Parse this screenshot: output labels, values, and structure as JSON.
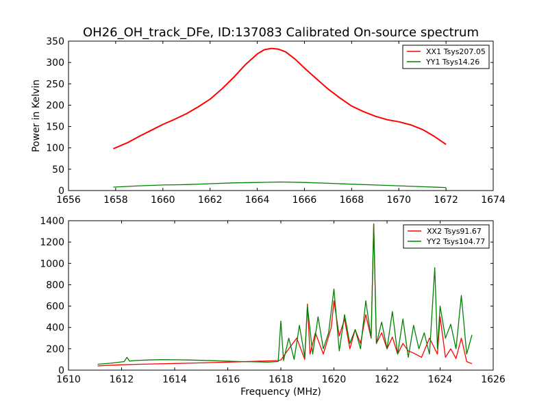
{
  "figure_title": "OH26_OH_track_DFe, ID:137083 Calibrated On-source spectrum",
  "chart_data": [
    {
      "type": "line",
      "title": "",
      "xlabel": "",
      "ylabel": "Power in Kelvin",
      "xlim": [
        1656,
        1674
      ],
      "ylim": [
        0,
        350
      ],
      "xticks": [
        "1656",
        "1658",
        "1660",
        "1662",
        "1664",
        "1666",
        "1668",
        "1670",
        "1672",
        "1674"
      ],
      "yticks": [
        "0",
        "50",
        "100",
        "150",
        "200",
        "250",
        "300",
        "350"
      ],
      "legend_placement": "top-right",
      "series": [
        {
          "name": "XX1 Tsys207.05",
          "color": "#ff0000",
          "x": [
            1657.9,
            1658.5,
            1659.0,
            1659.5,
            1660.0,
            1660.5,
            1661.0,
            1661.5,
            1662.0,
            1662.5,
            1663.0,
            1663.5,
            1664.0,
            1664.3,
            1664.6,
            1664.9,
            1665.2,
            1665.6,
            1666.0,
            1666.5,
            1667.0,
            1667.5,
            1668.0,
            1668.5,
            1669.0,
            1669.5,
            1670.0,
            1670.5,
            1671.0,
            1671.5,
            1672.0
          ],
          "y": [
            98,
            112,
            127,
            141,
            155,
            167,
            180,
            196,
            214,
            238,
            265,
            295,
            320,
            330,
            333,
            331,
            325,
            308,
            287,
            262,
            238,
            217,
            198,
            185,
            174,
            166,
            161,
            154,
            143,
            127,
            108
          ]
        },
        {
          "name": "YY1 Tsys14.26",
          "color": "#008000",
          "x": [
            1657.9,
            1659.0,
            1660.0,
            1661.0,
            1662.0,
            1663.0,
            1664.0,
            1665.0,
            1666.0,
            1667.0,
            1668.0,
            1669.0,
            1670.0,
            1671.0,
            1672.0
          ],
          "y": [
            8,
            11,
            13,
            14,
            16,
            18,
            19,
            20,
            19,
            17,
            15,
            13,
            11,
            9,
            7
          ]
        }
      ]
    },
    {
      "type": "line",
      "title": "",
      "xlabel": "Frequency (MHz)",
      "ylabel": "",
      "xlim": [
        1610,
        1626
      ],
      "ylim": [
        0,
        1400
      ],
      "xticks": [
        "1610",
        "1612",
        "1614",
        "1616",
        "1618",
        "1620",
        "1622",
        "1624",
        "1626"
      ],
      "yticks": [
        "0",
        "200",
        "400",
        "600",
        "800",
        "1000",
        "1200",
        "1400"
      ],
      "legend_placement": "top-right",
      "series": [
        {
          "name": "XX2 Tsys91.67",
          "color": "#ff0000",
          "x": [
            1611.1,
            1612.0,
            1613.0,
            1614.0,
            1615.0,
            1616.0,
            1617.0,
            1617.9,
            1618.0,
            1618.3,
            1618.6,
            1618.9,
            1619.0,
            1619.1,
            1619.3,
            1619.6,
            1619.9,
            1620.0,
            1620.2,
            1620.4,
            1620.6,
            1620.8,
            1621.0,
            1621.2,
            1621.4,
            1621.5,
            1621.6,
            1621.8,
            1622.0,
            1622.2,
            1622.4,
            1622.6,
            1622.8,
            1623.0,
            1623.3,
            1623.6,
            1623.9,
            1624.0,
            1624.2,
            1624.4,
            1624.6,
            1624.8,
            1625.0,
            1625.2
          ],
          "y": [
            40,
            50,
            57,
            62,
            68,
            75,
            82,
            90,
            95,
            200,
            300,
            100,
            620,
            150,
            350,
            150,
            400,
            650,
            320,
            480,
            200,
            380,
            250,
            520,
            300,
            1370,
            250,
            350,
            200,
            310,
            150,
            250,
            180,
            160,
            120,
            300,
            150,
            500,
            120,
            200,
            110,
            300,
            80,
            60
          ]
        },
        {
          "name": "YY2 Tsys104.77",
          "color": "#008000",
          "x": [
            1611.1,
            1611.6,
            1612.1,
            1612.2,
            1612.3,
            1612.5,
            1613.0,
            1613.5,
            1614.0,
            1614.5,
            1615.0,
            1615.5,
            1616.0,
            1616.5,
            1617.0,
            1617.5,
            1617.9,
            1618.0,
            1618.1,
            1618.3,
            1618.5,
            1618.7,
            1618.9,
            1619.0,
            1619.2,
            1619.4,
            1619.6,
            1619.8,
            1620.0,
            1620.2,
            1620.4,
            1620.6,
            1620.8,
            1621.0,
            1621.2,
            1621.4,
            1621.5,
            1621.6,
            1621.8,
            1622.0,
            1622.2,
            1622.4,
            1622.6,
            1622.8,
            1623.0,
            1623.2,
            1623.4,
            1623.6,
            1623.8,
            1623.9,
            1624.0,
            1624.2,
            1624.4,
            1624.6,
            1624.8,
            1625.0,
            1625.2
          ],
          "y": [
            55,
            65,
            80,
            120,
            85,
            90,
            95,
            98,
            97,
            95,
            92,
            88,
            84,
            80,
            78,
            75,
            80,
            460,
            90,
            300,
            100,
            420,
            120,
            600,
            150,
            500,
            200,
            350,
            760,
            180,
            520,
            250,
            380,
            200,
            650,
            300,
            1370,
            250,
            450,
            200,
            550,
            150,
            480,
            120,
            420,
            200,
            350,
            150,
            960,
            200,
            600,
            300,
            430,
            200,
            700,
            150,
            330
          ]
        }
      ]
    }
  ]
}
